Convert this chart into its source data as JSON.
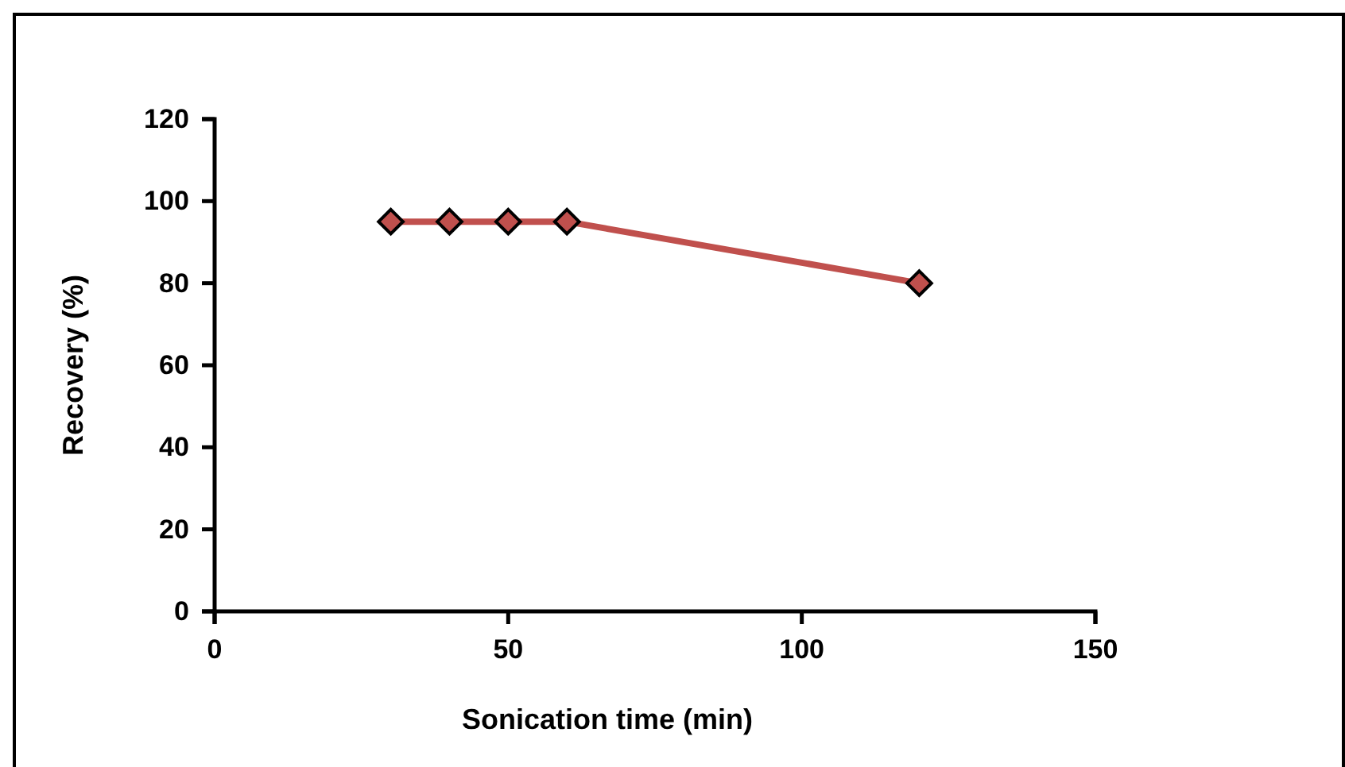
{
  "chart_data": {
    "type": "line",
    "xlabel": "Sonication time (min)",
    "ylabel": "Recovery (%)",
    "x": [
      30,
      40,
      50,
      60,
      120
    ],
    "series": [
      {
        "color": "#c0504d",
        "values": [
          95,
          95,
          95,
          95,
          80
        ]
      }
    ],
    "xlim": [
      0,
      150
    ],
    "xticks": [
      0,
      50,
      100,
      150
    ],
    "ylim": [
      0,
      120
    ],
    "yticks": [
      0,
      20,
      40,
      60,
      80,
      100,
      120
    ],
    "marker": "diamond",
    "line_style": "solid",
    "grid": false
  }
}
